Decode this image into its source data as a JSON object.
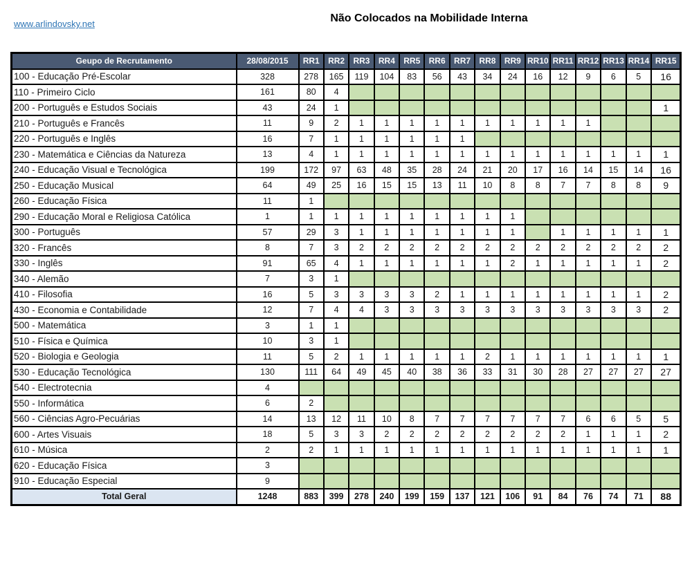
{
  "page": {
    "link": "www.arlindovsky.net",
    "title": "Não Colocados na Mobilidade Interna"
  },
  "colors": {
    "header_bg": "#4a5a73",
    "empty_cell": "#c9e0b2",
    "total_bg": "#dbe5f1",
    "link_color": "#2e75b5"
  },
  "table": {
    "header": {
      "group_col": "Geupo de Recrutamento",
      "columns": [
        "28/08/2015",
        "RR1",
        "RR2",
        "RR3",
        "RR4",
        "RR5",
        "RR6",
        "RR7",
        "RR8",
        "RR9",
        "RR10",
        "RR11",
        "RR12",
        "RR13",
        "RR14",
        "RR15"
      ]
    },
    "rows": [
      {
        "label": "100 - Educação Pré-Escolar",
        "values": [
          328,
          278,
          165,
          119,
          104,
          83,
          56,
          43,
          34,
          24,
          16,
          12,
          9,
          6,
          5,
          16
        ]
      },
      {
        "label": "110 - Primeiro Ciclo",
        "values": [
          161,
          80,
          4,
          null,
          null,
          null,
          null,
          null,
          null,
          null,
          null,
          null,
          null,
          null,
          null,
          null
        ]
      },
      {
        "label": "200 - Português e Estudos Sociais",
        "values": [
          43,
          24,
          1,
          null,
          null,
          null,
          null,
          null,
          null,
          null,
          null,
          null,
          null,
          null,
          null,
          1
        ]
      },
      {
        "label": "210 - Português e Francês",
        "values": [
          11,
          9,
          2,
          1,
          1,
          1,
          1,
          1,
          1,
          1,
          1,
          1,
          1,
          null,
          null,
          null
        ]
      },
      {
        "label": "220 - Português e Inglês",
        "values": [
          16,
          7,
          1,
          1,
          1,
          1,
          1,
          1,
          null,
          null,
          null,
          null,
          null,
          null,
          null,
          null
        ]
      },
      {
        "label": "230 - Matemática e Ciências da Natureza",
        "values": [
          13,
          4,
          1,
          1,
          1,
          1,
          1,
          1,
          1,
          1,
          1,
          1,
          1,
          1,
          1,
          1
        ]
      },
      {
        "label": "240 - Educação Visual e Tecnológica",
        "values": [
          199,
          172,
          97,
          63,
          48,
          35,
          28,
          24,
          21,
          20,
          17,
          16,
          14,
          15,
          14,
          16
        ]
      },
      {
        "label": "250 - Educação Musical",
        "values": [
          64,
          49,
          25,
          16,
          15,
          15,
          13,
          11,
          10,
          8,
          8,
          7,
          7,
          8,
          8,
          9
        ]
      },
      {
        "label": "260 - Educação Física",
        "values": [
          11,
          1,
          null,
          null,
          null,
          null,
          null,
          null,
          null,
          null,
          null,
          null,
          null,
          null,
          null,
          null
        ]
      },
      {
        "label": "290 - Educação Moral e Religiosa Católica",
        "values": [
          1,
          1,
          1,
          1,
          1,
          1,
          1,
          1,
          1,
          1,
          null,
          null,
          null,
          null,
          null,
          null
        ]
      },
      {
        "label": "300 - Português",
        "values": [
          57,
          29,
          3,
          1,
          1,
          1,
          1,
          1,
          1,
          1,
          null,
          1,
          1,
          1,
          1,
          1
        ]
      },
      {
        "label": "320 - Francês",
        "values": [
          8,
          7,
          3,
          2,
          2,
          2,
          2,
          2,
          2,
          2,
          2,
          2,
          2,
          2,
          2,
          2
        ]
      },
      {
        "label": "330 - Inglês",
        "values": [
          91,
          65,
          4,
          1,
          1,
          1,
          1,
          1,
          1,
          2,
          1,
          1,
          1,
          1,
          1,
          2
        ]
      },
      {
        "label": "340 - Alemão",
        "values": [
          7,
          3,
          1,
          null,
          null,
          null,
          null,
          null,
          null,
          null,
          null,
          null,
          null,
          null,
          null,
          null
        ]
      },
      {
        "label": "410 - Filosofia",
        "values": [
          16,
          5,
          3,
          3,
          3,
          3,
          2,
          1,
          1,
          1,
          1,
          1,
          1,
          1,
          1,
          2
        ]
      },
      {
        "label": "430 - Economia  e Contabilidade",
        "values": [
          12,
          7,
          4,
          4,
          3,
          3,
          3,
          3,
          3,
          3,
          3,
          3,
          3,
          3,
          3,
          2
        ]
      },
      {
        "label": "500 - Matemática",
        "values": [
          3,
          1,
          1,
          null,
          null,
          null,
          null,
          null,
          null,
          null,
          null,
          null,
          null,
          null,
          null,
          null
        ]
      },
      {
        "label": "510 - Física e Química",
        "values": [
          10,
          3,
          1,
          null,
          null,
          null,
          null,
          null,
          null,
          null,
          null,
          null,
          null,
          null,
          null,
          null
        ]
      },
      {
        "label": "520 - Biologia e Geologia",
        "values": [
          11,
          5,
          2,
          1,
          1,
          1,
          1,
          1,
          2,
          1,
          1,
          1,
          1,
          1,
          1,
          1
        ]
      },
      {
        "label": "530 - Educação Tecnológica",
        "values": [
          130,
          111,
          64,
          49,
          45,
          40,
          38,
          36,
          33,
          31,
          30,
          28,
          27,
          27,
          27,
          27
        ]
      },
      {
        "label": "540 - Electrotecnia",
        "values": [
          4,
          null,
          null,
          null,
          null,
          null,
          null,
          null,
          null,
          null,
          null,
          null,
          null,
          null,
          null,
          null
        ]
      },
      {
        "label": "550 - Informática",
        "values": [
          6,
          2,
          null,
          null,
          null,
          null,
          null,
          null,
          null,
          null,
          null,
          null,
          null,
          null,
          null,
          null
        ]
      },
      {
        "label": "560 - Ciências Agro-Pecuárias",
        "values": [
          14,
          13,
          12,
          11,
          10,
          8,
          7,
          7,
          7,
          7,
          7,
          7,
          6,
          6,
          5,
          5
        ]
      },
      {
        "label": "600 - Artes Visuais",
        "values": [
          18,
          5,
          3,
          3,
          2,
          2,
          2,
          2,
          2,
          2,
          2,
          2,
          1,
          1,
          1,
          2
        ]
      },
      {
        "label": "610 - Música",
        "values": [
          2,
          2,
          1,
          1,
          1,
          1,
          1,
          1,
          1,
          1,
          1,
          1,
          1,
          1,
          1,
          1
        ]
      },
      {
        "label": "620 - Educação Física",
        "values": [
          3,
          null,
          null,
          null,
          null,
          null,
          null,
          null,
          null,
          null,
          null,
          null,
          null,
          null,
          null,
          null
        ]
      },
      {
        "label": "910 - Educação Especial",
        "values": [
          9,
          null,
          null,
          null,
          null,
          null,
          null,
          null,
          null,
          null,
          null,
          null,
          null,
          null,
          null,
          null
        ]
      }
    ],
    "total": {
      "label": "Total Geral",
      "values": [
        1248,
        883,
        399,
        278,
        240,
        199,
        159,
        137,
        121,
        106,
        91,
        84,
        76,
        74,
        71,
        88
      ]
    }
  }
}
